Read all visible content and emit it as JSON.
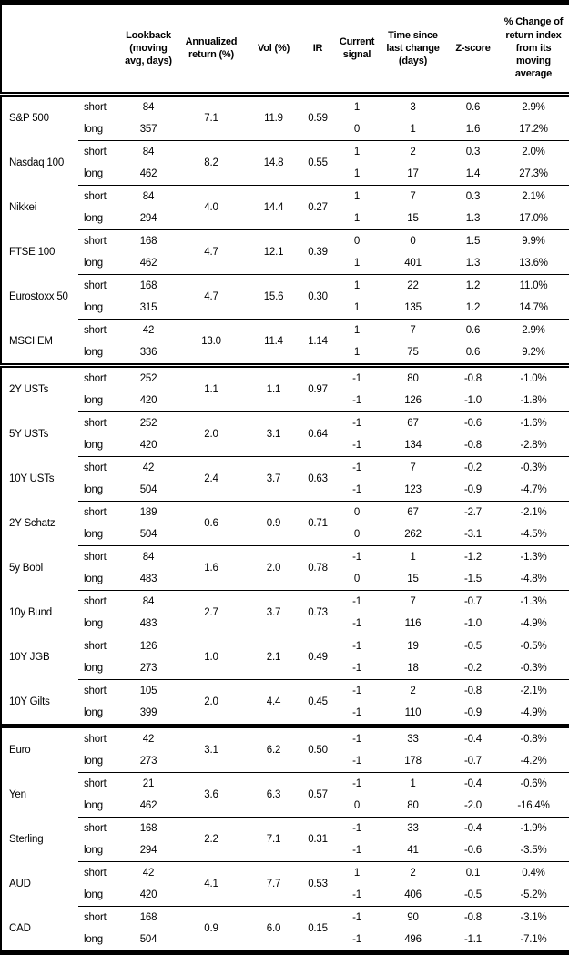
{
  "table": {
    "columns": {
      "asset": "",
      "horizon": "",
      "lookback": "Lookback (moving avg, days)",
      "annualized_return": "Annualized return (%)",
      "vol": "Vol (%)",
      "ir": "IR",
      "current_signal": "Current signal",
      "time_since": "Time since last change (days)",
      "zscore": "Z-score",
      "pct_change": "% Change of return index from its moving average"
    },
    "groups": [
      {
        "asset": "S&P 500",
        "section_start": false,
        "annualized_return": "7.1",
        "vol": "11.9",
        "ir": "0.59",
        "rows": [
          {
            "horizon": "short",
            "lookback": "84",
            "signal": "1",
            "time_since": "3",
            "zscore": "0.6",
            "pct_change": "2.9%"
          },
          {
            "horizon": "long",
            "lookback": "357",
            "signal": "0",
            "time_since": "1",
            "zscore": "1.6",
            "pct_change": "17.2%"
          }
        ]
      },
      {
        "asset": "Nasdaq 100",
        "section_start": false,
        "annualized_return": "8.2",
        "vol": "14.8",
        "ir": "0.55",
        "rows": [
          {
            "horizon": "short",
            "lookback": "84",
            "signal": "1",
            "time_since": "2",
            "zscore": "0.3",
            "pct_change": "2.0%"
          },
          {
            "horizon": "long",
            "lookback": "462",
            "signal": "1",
            "time_since": "17",
            "zscore": "1.4",
            "pct_change": "27.3%"
          }
        ]
      },
      {
        "asset": "Nikkei",
        "section_start": false,
        "annualized_return": "4.0",
        "vol": "14.4",
        "ir": "0.27",
        "rows": [
          {
            "horizon": "short",
            "lookback": "84",
            "signal": "1",
            "time_since": "7",
            "zscore": "0.3",
            "pct_change": "2.1%"
          },
          {
            "horizon": "long",
            "lookback": "294",
            "signal": "1",
            "time_since": "15",
            "zscore": "1.3",
            "pct_change": "17.0%"
          }
        ]
      },
      {
        "asset": "FTSE 100",
        "section_start": false,
        "annualized_return": "4.7",
        "vol": "12.1",
        "ir": "0.39",
        "rows": [
          {
            "horizon": "short",
            "lookback": "168",
            "signal": "0",
            "time_since": "0",
            "zscore": "1.5",
            "pct_change": "9.9%"
          },
          {
            "horizon": "long",
            "lookback": "462",
            "signal": "1",
            "time_since": "401",
            "zscore": "1.3",
            "pct_change": "13.6%"
          }
        ]
      },
      {
        "asset": "Eurostoxx 50",
        "section_start": false,
        "annualized_return": "4.7",
        "vol": "15.6",
        "ir": "0.30",
        "rows": [
          {
            "horizon": "short",
            "lookback": "168",
            "signal": "1",
            "time_since": "22",
            "zscore": "1.2",
            "pct_change": "11.0%"
          },
          {
            "horizon": "long",
            "lookback": "315",
            "signal": "1",
            "time_since": "135",
            "zscore": "1.2",
            "pct_change": "14.7%"
          }
        ]
      },
      {
        "asset": "MSCI EM",
        "section_start": false,
        "annualized_return": "13.0",
        "vol": "11.4",
        "ir": "1.14",
        "rows": [
          {
            "horizon": "short",
            "lookback": "42",
            "signal": "1",
            "time_since": "7",
            "zscore": "0.6",
            "pct_change": "2.9%"
          },
          {
            "horizon": "long",
            "lookback": "336",
            "signal": "1",
            "time_since": "75",
            "zscore": "0.6",
            "pct_change": "9.2%"
          }
        ]
      },
      {
        "asset": "2Y USTs",
        "section_start": true,
        "annualized_return": "1.1",
        "vol": "1.1",
        "ir": "0.97",
        "rows": [
          {
            "horizon": "short",
            "lookback": "252",
            "signal": "-1",
            "time_since": "80",
            "zscore": "-0.8",
            "pct_change": "-1.0%"
          },
          {
            "horizon": "long",
            "lookback": "420",
            "signal": "-1",
            "time_since": "126",
            "zscore": "-1.0",
            "pct_change": "-1.8%"
          }
        ]
      },
      {
        "asset": "5Y USTs",
        "section_start": false,
        "annualized_return": "2.0",
        "vol": "3.1",
        "ir": "0.64",
        "rows": [
          {
            "horizon": "short",
            "lookback": "252",
            "signal": "-1",
            "time_since": "67",
            "zscore": "-0.6",
            "pct_change": "-1.6%"
          },
          {
            "horizon": "long",
            "lookback": "420",
            "signal": "-1",
            "time_since": "134",
            "zscore": "-0.8",
            "pct_change": "-2.8%"
          }
        ]
      },
      {
        "asset": "10Y USTs",
        "section_start": false,
        "annualized_return": "2.4",
        "vol": "3.7",
        "ir": "0.63",
        "rows": [
          {
            "horizon": "short",
            "lookback": "42",
            "signal": "-1",
            "time_since": "7",
            "zscore": "-0.2",
            "pct_change": "-0.3%"
          },
          {
            "horizon": "long",
            "lookback": "504",
            "signal": "-1",
            "time_since": "123",
            "zscore": "-0.9",
            "pct_change": "-4.7%"
          }
        ]
      },
      {
        "asset": "2Y Schatz",
        "section_start": false,
        "annualized_return": "0.6",
        "vol": "0.9",
        "ir": "0.71",
        "rows": [
          {
            "horizon": "short",
            "lookback": "189",
            "signal": "0",
            "time_since": "67",
            "zscore": "-2.7",
            "pct_change": "-2.1%"
          },
          {
            "horizon": "long",
            "lookback": "504",
            "signal": "0",
            "time_since": "262",
            "zscore": "-3.1",
            "pct_change": "-4.5%"
          }
        ]
      },
      {
        "asset": "5y Bobl",
        "section_start": false,
        "annualized_return": "1.6",
        "vol": "2.0",
        "ir": "0.78",
        "rows": [
          {
            "horizon": "short",
            "lookback": "84",
            "signal": "-1",
            "time_since": "1",
            "zscore": "-1.2",
            "pct_change": "-1.3%"
          },
          {
            "horizon": "long",
            "lookback": "483",
            "signal": "0",
            "time_since": "15",
            "zscore": "-1.5",
            "pct_change": "-4.8%"
          }
        ]
      },
      {
        "asset": "10y Bund",
        "section_start": false,
        "annualized_return": "2.7",
        "vol": "3.7",
        "ir": "0.73",
        "rows": [
          {
            "horizon": "short",
            "lookback": "84",
            "signal": "-1",
            "time_since": "7",
            "zscore": "-0.7",
            "pct_change": "-1.3%"
          },
          {
            "horizon": "long",
            "lookback": "483",
            "signal": "-1",
            "time_since": "116",
            "zscore": "-1.0",
            "pct_change": "-4.9%"
          }
        ]
      },
      {
        "asset": "10Y JGB",
        "section_start": false,
        "annualized_return": "1.0",
        "vol": "2.1",
        "ir": "0.49",
        "rows": [
          {
            "horizon": "short",
            "lookback": "126",
            "signal": "-1",
            "time_since": "19",
            "zscore": "-0.5",
            "pct_change": "-0.5%"
          },
          {
            "horizon": "long",
            "lookback": "273",
            "signal": "-1",
            "time_since": "18",
            "zscore": "-0.2",
            "pct_change": "-0.3%"
          }
        ]
      },
      {
        "asset": "10Y Gilts",
        "section_start": false,
        "annualized_return": "2.0",
        "vol": "4.4",
        "ir": "0.45",
        "rows": [
          {
            "horizon": "short",
            "lookback": "105",
            "signal": "-1",
            "time_since": "2",
            "zscore": "-0.8",
            "pct_change": "-2.1%"
          },
          {
            "horizon": "long",
            "lookback": "399",
            "signal": "-1",
            "time_since": "110",
            "zscore": "-0.9",
            "pct_change": "-4.9%"
          }
        ]
      },
      {
        "asset": "Euro",
        "section_start": true,
        "annualized_return": "3.1",
        "vol": "6.2",
        "ir": "0.50",
        "rows": [
          {
            "horizon": "short",
            "lookback": "42",
            "signal": "-1",
            "time_since": "33",
            "zscore": "-0.4",
            "pct_change": "-0.8%"
          },
          {
            "horizon": "long",
            "lookback": "273",
            "signal": "-1",
            "time_since": "178",
            "zscore": "-0.7",
            "pct_change": "-4.2%"
          }
        ]
      },
      {
        "asset": "Yen",
        "section_start": false,
        "annualized_return": "3.6",
        "vol": "6.3",
        "ir": "0.57",
        "rows": [
          {
            "horizon": "short",
            "lookback": "21",
            "signal": "-1",
            "time_since": "1",
            "zscore": "-0.4",
            "pct_change": "-0.6%"
          },
          {
            "horizon": "long",
            "lookback": "462",
            "signal": "0",
            "time_since": "80",
            "zscore": "-2.0",
            "pct_change": "-16.4%"
          }
        ]
      },
      {
        "asset": "Sterling",
        "section_start": false,
        "annualized_return": "2.2",
        "vol": "7.1",
        "ir": "0.31",
        "rows": [
          {
            "horizon": "short",
            "lookback": "168",
            "signal": "-1",
            "time_since": "33",
            "zscore": "-0.4",
            "pct_change": "-1.9%"
          },
          {
            "horizon": "long",
            "lookback": "294",
            "signal": "-1",
            "time_since": "41",
            "zscore": "-0.6",
            "pct_change": "-3.5%"
          }
        ]
      },
      {
        "asset": "AUD",
        "section_start": false,
        "annualized_return": "4.1",
        "vol": "7.7",
        "ir": "0.53",
        "rows": [
          {
            "horizon": "short",
            "lookback": "42",
            "signal": "1",
            "time_since": "2",
            "zscore": "0.1",
            "pct_change": "0.4%"
          },
          {
            "horizon": "long",
            "lookback": "420",
            "signal": "-1",
            "time_since": "406",
            "zscore": "-0.5",
            "pct_change": "-5.2%"
          }
        ]
      },
      {
        "asset": "CAD",
        "section_start": false,
        "annualized_return": "0.9",
        "vol": "6.0",
        "ir": "0.15",
        "rows": [
          {
            "horizon": "short",
            "lookback": "168",
            "signal": "-1",
            "time_since": "90",
            "zscore": "-0.8",
            "pct_change": "-3.1%"
          },
          {
            "horizon": "long",
            "lookback": "504",
            "signal": "-1",
            "time_since": "496",
            "zscore": "-1.1",
            "pct_change": "-7.1%"
          }
        ]
      }
    ]
  }
}
